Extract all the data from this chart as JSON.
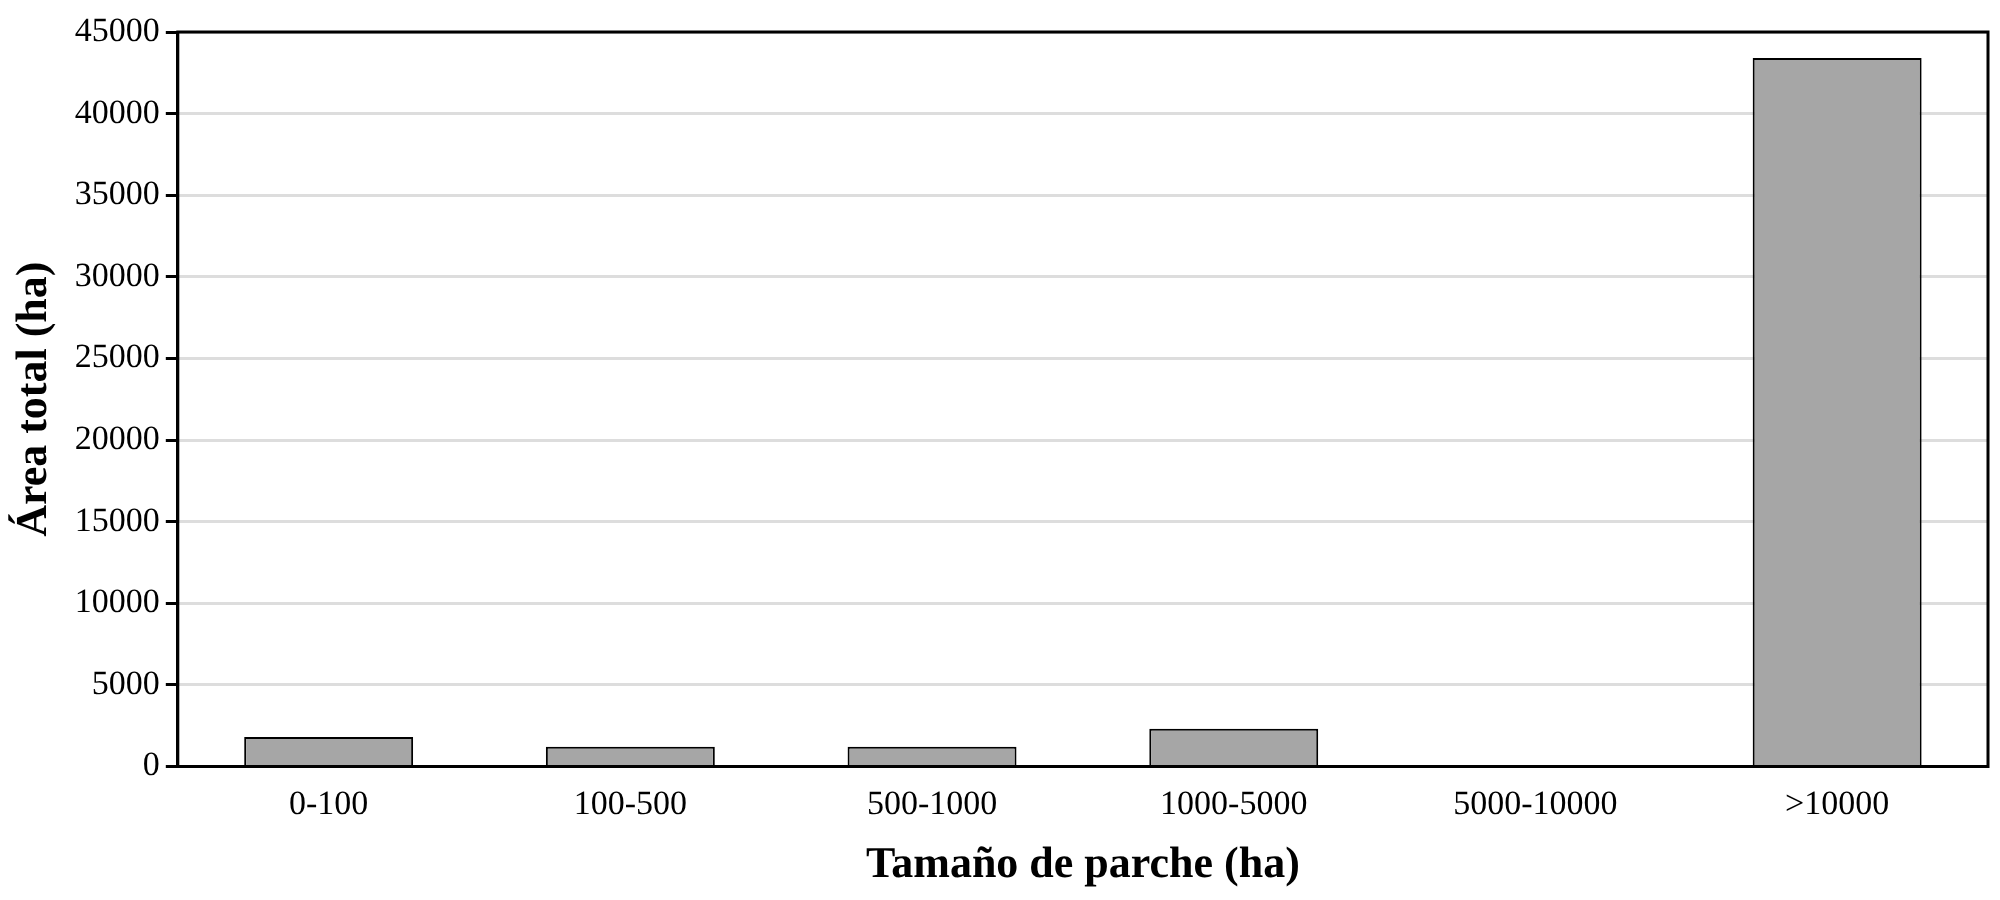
{
  "chart_data": {
    "type": "bar",
    "xlabel": "Tamaño de parche (ha)",
    "ylabel": "Área total (ha)",
    "categories": [
      "0-100",
      "100-500",
      "500-1000",
      "1000-5000",
      "5000-10000",
      ">10000"
    ],
    "values": [
      1800,
      1200,
      1200,
      2300,
      0,
      43400
    ],
    "color": "#a6a6a6",
    "ylim": [
      0,
      45000
    ],
    "yticks": [
      0,
      5000,
      10000,
      15000,
      20000,
      25000,
      30000,
      35000,
      40000,
      45000
    ],
    "grid": "y"
  }
}
